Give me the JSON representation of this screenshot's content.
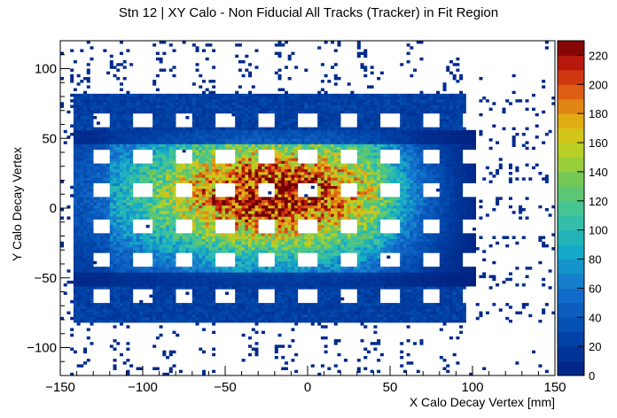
{
  "chart_data": {
    "type": "heatmap",
    "title": "Stn 12 | XY Calo - Non Fiducial All Tracks (Tracker) in Fit Region",
    "xlabel": "X Calo Decay Vertex [mm]",
    "ylabel": "Y Calo Decay Vertex",
    "xlim": [
      -150,
      150
    ],
    "ylim": [
      -120,
      120
    ],
    "x_ticks": [
      -150,
      -100,
      -50,
      0,
      50,
      100,
      150
    ],
    "x_tick_labels": [
      "−150",
      "−100",
      "−50",
      "0",
      "50",
      "100",
      "150"
    ],
    "y_ticks": [
      -100,
      -50,
      0,
      50,
      100
    ],
    "y_tick_labels": [
      "−100",
      "−50",
      "0",
      "50",
      "100"
    ],
    "z_range": [
      0,
      230
    ],
    "colorbar_ticks": [
      0,
      20,
      40,
      60,
      80,
      100,
      120,
      140,
      160,
      180,
      200,
      220
    ],
    "colorbar_tick_labels": [
      "0",
      "20",
      "40",
      "60",
      "80",
      "100",
      "120",
      "140",
      "160",
      "180",
      "200",
      "220"
    ],
    "colorscale": "rainbow (dark blue to dark red)",
    "grid": false,
    "pattern": {
      "description": "grid of dense bands around square empty cells (calorimeter crystal array)",
      "vertical_bands_x": [
        -137.5,
        -112.5,
        -87.5,
        -62.5,
        -37.5,
        -12.5,
        12.5,
        37.5,
        62.5,
        87.5
      ],
      "horizontal_bands_y": [
        -75,
        -50,
        -25,
        0,
        25,
        50,
        75
      ],
      "dense_x_range": [
        -142,
        102
      ],
      "dense_y_range": [
        -55,
        55
      ],
      "peak_region": {
        "x": [
          -60,
          20
        ],
        "y": [
          -10,
          30
        ],
        "max_value": 230
      }
    }
  }
}
